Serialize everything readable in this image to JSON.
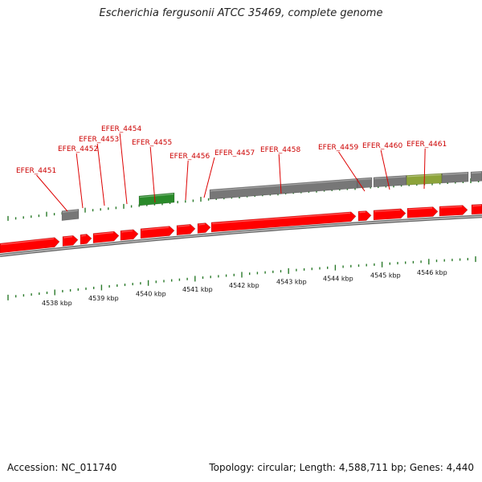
{
  "title": "Escherichia fergusonii ATCC 35469, complete genome",
  "footer": {
    "accession": "Accession: NC_011740",
    "summary": "Topology: circular; Length: 4,588,711 bp; Genes: 4,440"
  },
  "colors": {
    "gene_red": "#ff0000",
    "gene_gray": "#777777",
    "gene_green": "#2a8a2a",
    "gene_olive": "#8ca33a",
    "tick_green": "#2a7a2a",
    "label_red": "#cc0000",
    "backbone": "#8a8a8a"
  },
  "gene_labels": [
    "EFER_4451",
    "EFER_4452",
    "EFER_4453",
    "EFER_4454",
    "EFER_4455",
    "EFER_4456",
    "EFER_4457",
    "EFER_4458",
    "EFER_4459",
    "EFER_4460",
    "EFER_4461"
  ],
  "scale_labels": [
    "4538 kbp",
    "4539 kbp",
    "4540 kbp",
    "4541 kbp",
    "4542 kbp",
    "4543 kbp",
    "4544 kbp",
    "4545 kbp",
    "4546 kbp"
  ]
}
